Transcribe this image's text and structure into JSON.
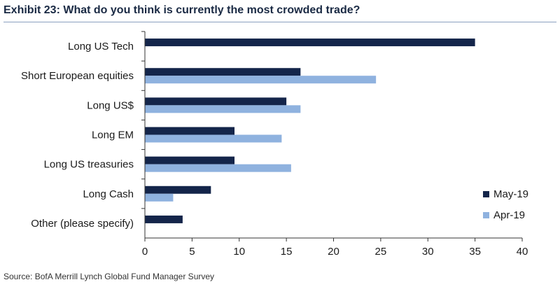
{
  "title": "Exhibit 23: What do you think is currently the most crowded trade?",
  "source": "Source: BofA Merrill Lynch Global Fund Manager Survey",
  "chart_data": {
    "type": "bar",
    "orientation": "horizontal",
    "categories": [
      "Long US Tech",
      "Short European equities",
      "Long US$",
      "Long EM",
      "Long US treasuries",
      "Long Cash",
      "Other (please specify)"
    ],
    "series": [
      {
        "name": "May-19",
        "color": "#14254a",
        "values": [
          35,
          16.5,
          15,
          9.5,
          9.5,
          7,
          4
        ]
      },
      {
        "name": "Apr-19",
        "color": "#8fb2df",
        "values": [
          null,
          24.5,
          16.5,
          14.5,
          15.5,
          3,
          null
        ]
      }
    ],
    "xlim": [
      0,
      40
    ],
    "xticks": [
      0,
      5,
      10,
      15,
      20,
      25,
      30,
      35,
      40
    ],
    "xlabel": "",
    "ylabel": "",
    "grid": false,
    "legend_position": "bottom-right"
  }
}
